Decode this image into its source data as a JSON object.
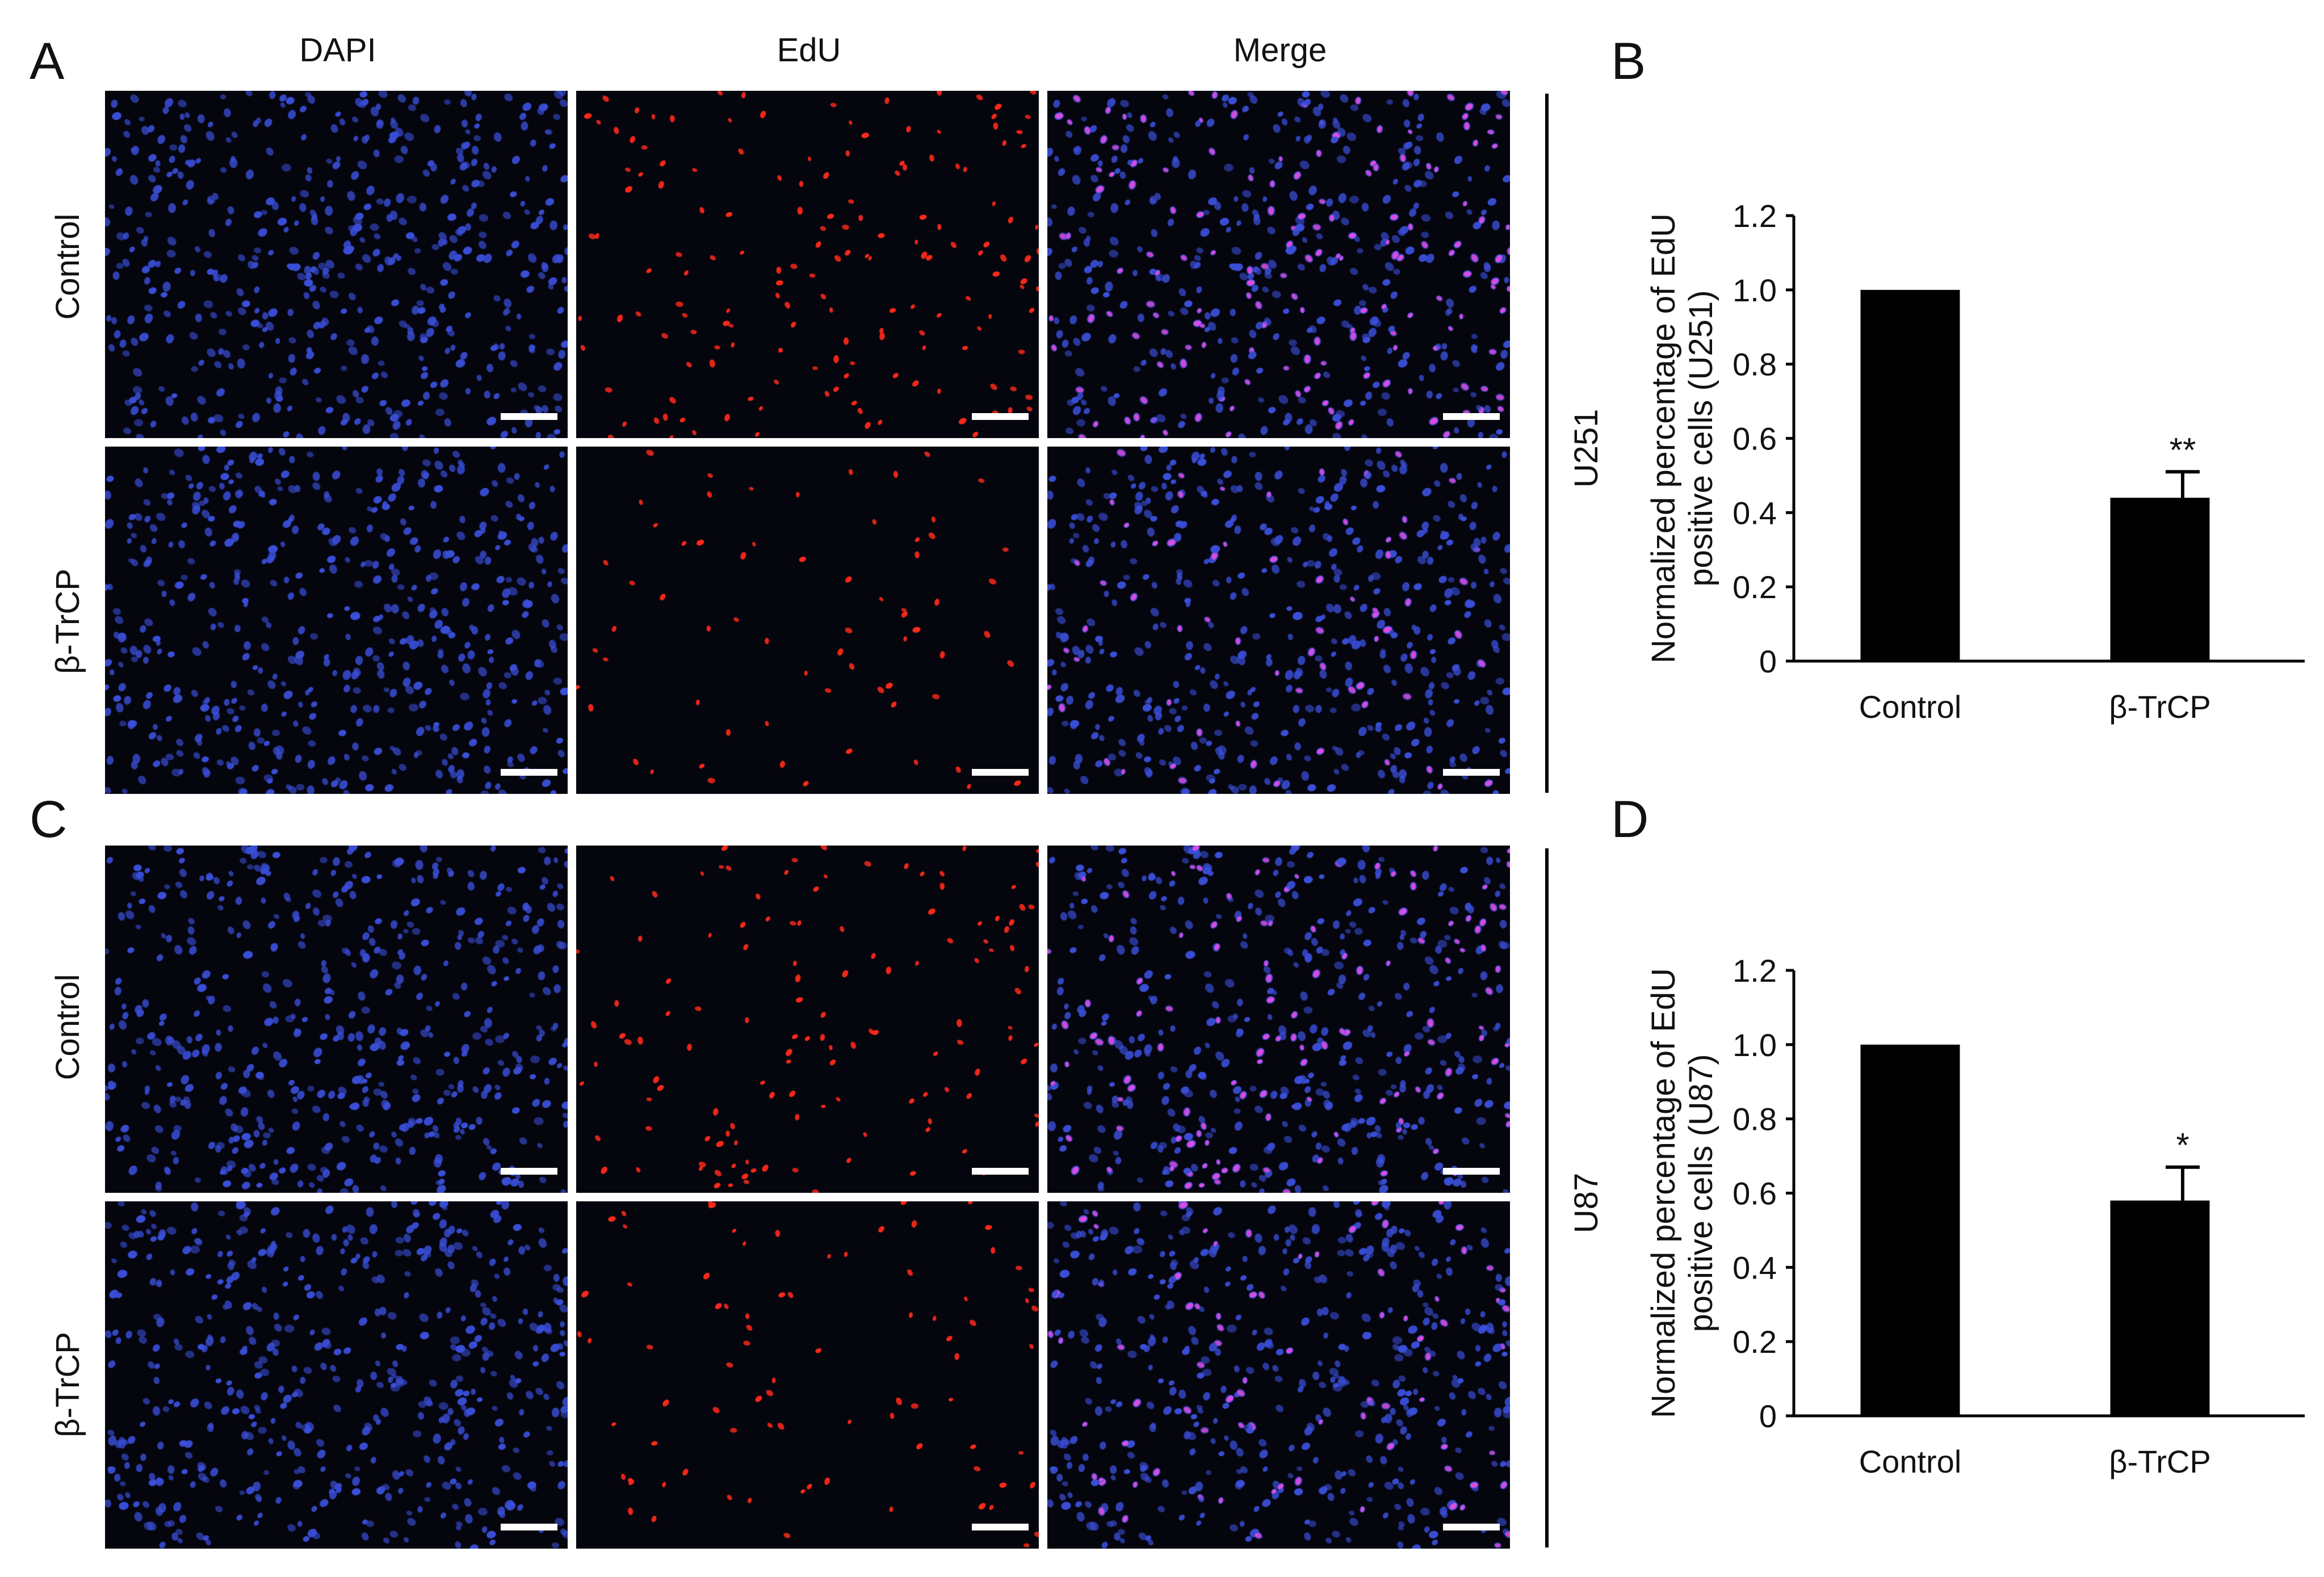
{
  "panels": {
    "A": "A",
    "B": "B",
    "C": "C",
    "D": "D"
  },
  "columns": [
    "DAPI",
    "EdU",
    "Merge"
  ],
  "rows": [
    "Control",
    "β-TrCP"
  ],
  "cell_lines": {
    "top": "U251",
    "bottom": "U87"
  },
  "colors": {
    "nucleus_blue": "#3a4fd8",
    "edu_red": "#ff2a1a",
    "merge_pink": "#e04ce0",
    "bar": "#000000",
    "image_bg": "#05050e"
  },
  "microscopy": {
    "top": {
      "control_density": 1.0,
      "trcp_density": 0.44
    },
    "bottom": {
      "control_density": 1.0,
      "trcp_density": 0.58
    }
  },
  "chart_data": [
    {
      "type": "bar",
      "categories": [
        "Control",
        "β-TrCP"
      ],
      "values": [
        1.0,
        0.44
      ],
      "errors": [
        0,
        0.07
      ],
      "significance": [
        "",
        "**"
      ],
      "ylabel": "Normalized percentage of EdU positive cells (U251)",
      "ylabel_lines": [
        "Normalized percentage of EdU",
        "positive cells (U251)"
      ],
      "ylim": [
        0,
        1.2
      ],
      "yticks": [
        "0",
        "0.2",
        "0.4",
        "0.6",
        "0.8",
        "1.0",
        "1.2"
      ],
      "grid": false
    },
    {
      "type": "bar",
      "categories": [
        "Control",
        "β-TrCP"
      ],
      "values": [
        1.0,
        0.58
      ],
      "errors": [
        0,
        0.09
      ],
      "significance": [
        "",
        "*"
      ],
      "ylabel": "Normalized percentage of EdU positive cells (U87)",
      "ylabel_lines": [
        "Normalized percentage of EdU",
        "positive cells (U87)"
      ],
      "ylim": [
        0,
        1.2
      ],
      "yticks": [
        "0",
        "0.2",
        "0.4",
        "0.6",
        "0.8",
        "1.0",
        "1.2"
      ],
      "grid": false
    }
  ]
}
